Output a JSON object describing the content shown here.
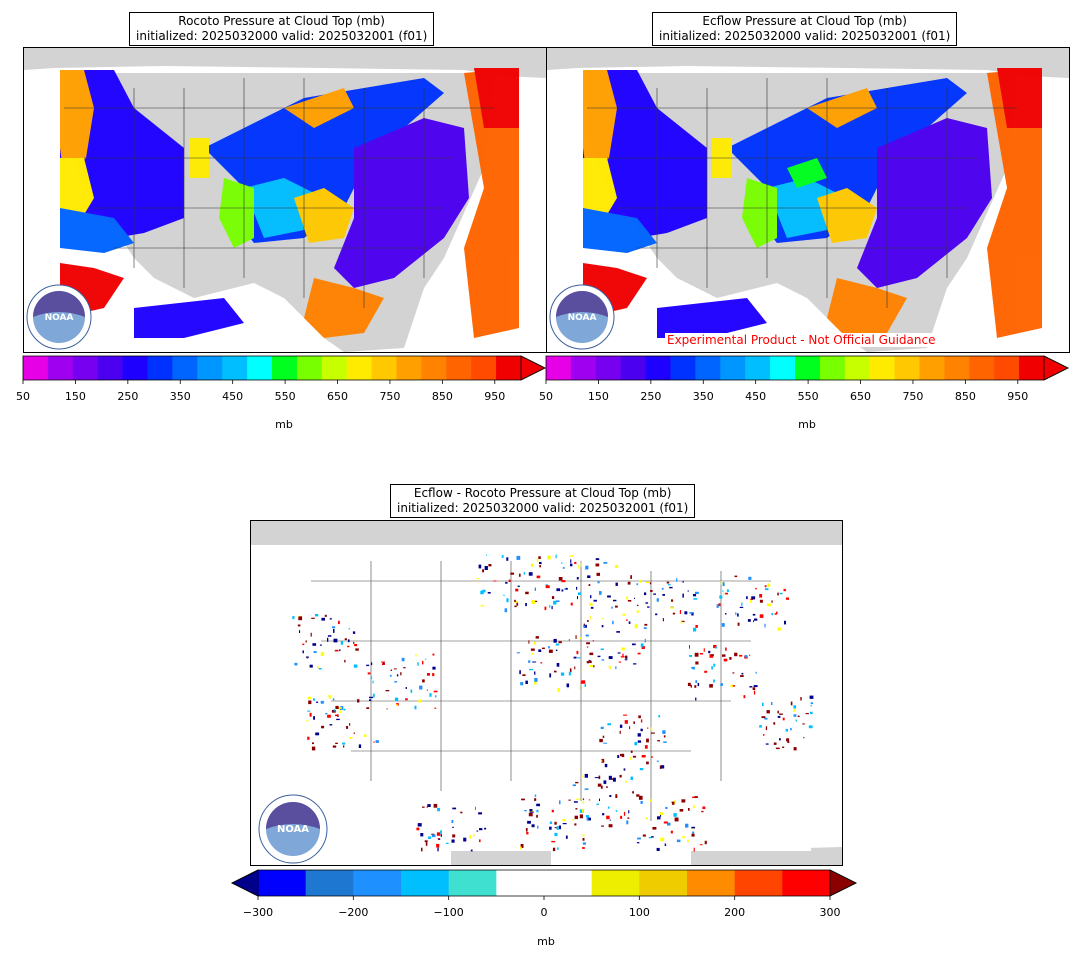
{
  "panels": {
    "left": {
      "title_line1": "Rocoto Pressure at Cloud Top (mb)",
      "title_line2": "initialized: 2025032000 valid: 2025032001 (f01)",
      "unit": "mb",
      "ticks": [
        "50",
        "150",
        "250",
        "350",
        "450",
        "550",
        "650",
        "750",
        "850",
        "950"
      ]
    },
    "right": {
      "title_line1": "Ecflow Pressure at Cloud Top (mb)",
      "title_line2": "initialized: 2025032000 valid: 2025032001 (f01)",
      "unit": "mb",
      "ticks": [
        "50",
        "150",
        "250",
        "350",
        "450",
        "550",
        "650",
        "750",
        "850",
        "950"
      ],
      "disclaimer": "Experimental Product - Not Official Guidance"
    },
    "diff": {
      "title_line1": "Ecflow - Rocoto Pressure at Cloud Top (mb)",
      "title_line2": "initialized: 2025032000 valid: 2025032001 (f01)",
      "unit": "mb",
      "ticks": [
        "−300",
        "−200",
        "−100",
        "0",
        "100",
        "200",
        "300"
      ]
    }
  },
  "colors": {
    "land": "#d3d3d3",
    "pressure_scale": [
      "#e600e6",
      "#a000f0",
      "#7800f0",
      "#4b00f0",
      "#1e00ff",
      "#0032ff",
      "#0064ff",
      "#0096ff",
      "#00beff",
      "#00ffff",
      "#00ff1e",
      "#78ff00",
      "#c8ff00",
      "#ffeb00",
      "#ffc800",
      "#ffa000",
      "#ff8200",
      "#ff6400",
      "#ff4b00",
      "#f00000"
    ],
    "pressure_extend_max": "#f00000",
    "diff_scale": [
      "#0000ff",
      "#1e78d2",
      "#1e90ff",
      "#00bfff",
      "#40e0d0",
      "#ffffff",
      "#ffffff",
      "#eeee00",
      "#eecc00",
      "#ff8c00",
      "#ff4500",
      "#ff0000"
    ],
    "diff_extend_min": "#00008b",
    "diff_extend_max": "#8b0000",
    "noaa_logo": "#3a5f9e",
    "disclaimer_text": "#ff0000"
  },
  "logos": {
    "noaa_text": "NOAA"
  }
}
